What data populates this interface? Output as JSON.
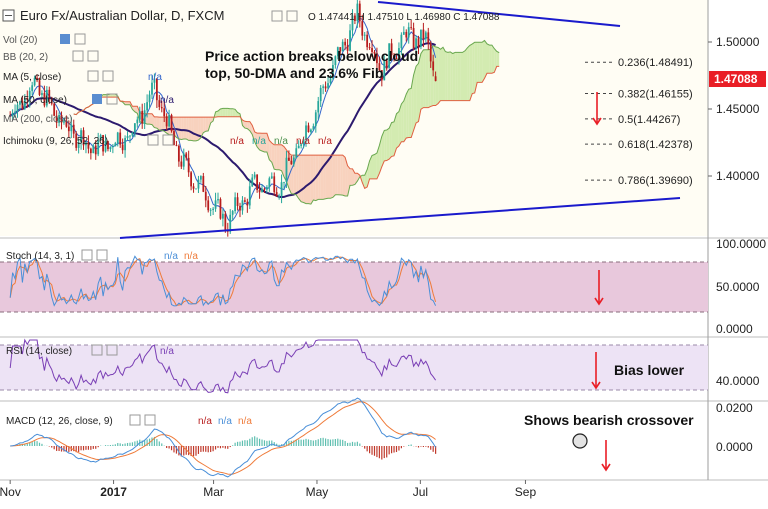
{
  "header": {
    "title": "Euro Fx/Australian Dollar, D, FXCM",
    "ohlc": "O 1.47441  H 1.47510  L 1.46980  C 1.47088"
  },
  "indicators": {
    "vol": "Vol (20)",
    "bb": "BB (20, 2)",
    "ma5": "MA (5, close)",
    "ma50": "MA (50, close)",
    "ma200": "MA (200, close)",
    "ichimoku": "Ichimoku (9, 26, 52, 26)",
    "na": "n/a"
  },
  "annotations": {
    "main_line1": "Price action breaks below cloud",
    "main_line2": "top, 50-DMA and 23.6% Fib",
    "rsi": "Bias lower",
    "macd": "Shows bearish crossover"
  },
  "fib_levels": [
    {
      "label": "0.236(1.48491)",
      "value": 1.48491
    },
    {
      "label": "0.382(1.46155)",
      "value": 1.46155
    },
    {
      "label": "0.5(1.44267)",
      "value": 1.44267
    },
    {
      "label": "0.618(1.42378)",
      "value": 1.42378
    },
    {
      "label": "0.786(1.39690)",
      "value": 1.3969
    }
  ],
  "price_tag": {
    "label": "1.47088",
    "value": 1.47088,
    "color": "#e91e26"
  },
  "colors": {
    "up": "#26a69a",
    "down": "#b71c1c",
    "ma50": "#2c1a6e",
    "ma5": "#3366cc",
    "trend": "#1a1acc",
    "cloud_bull": "#c8e6a0",
    "cloud_bear": "#f6c7b0",
    "stoch_k": "#4a8fd8",
    "stoch_d": "#ef7b3a",
    "rsi": "#7a3fb5",
    "macd": "#4a8fd8",
    "signal": "#ef7b3a",
    "arrow": "#e91e26"
  },
  "panels": {
    "stoch": {
      "label": "Stoch (14, 3, 1)",
      "na1": "n/a",
      "na2": "n/a",
      "ticks": [
        "100.0000",
        "50.0000",
        "0.0000"
      ]
    },
    "rsi": {
      "label": "RSI (14, close)",
      "na": "n/a",
      "ticks": [
        "40.0000"
      ]
    },
    "macd": {
      "label": "MACD (12, 26, close, 9)",
      "na1": "n/a",
      "na2": "n/a",
      "na3": "n/a",
      "ticks": [
        "0.0200",
        "0.0000"
      ]
    }
  },
  "chart_data": {
    "type": "candlestick",
    "title": "Euro Fx/Australian Dollar, D, FXCM",
    "price_ticks": [
      1.5,
      1.45,
      1.4
    ],
    "price_tick_labels": [
      "1.50000",
      "1.45000",
      "1.40000"
    ],
    "x_labels": [
      "Nov",
      "2017",
      "Mar",
      "May",
      "Jul",
      "Sep"
    ],
    "ohlc_last": {
      "open": 1.47441,
      "high": 1.4751,
      "low": 1.4698,
      "close": 1.47088
    },
    "close_path": [
      [
        "2016-11-01",
        1.445
      ],
      [
        "2016-11-15",
        1.47
      ],
      [
        "2016-12-01",
        1.44
      ],
      [
        "2016-12-20",
        1.42
      ],
      [
        "2017-01-10",
        1.43
      ],
      [
        "2017-01-25",
        1.465
      ],
      [
        "2017-02-10",
        1.41
      ],
      [
        "2017-02-25",
        1.385
      ],
      [
        "2017-03-08",
        1.365
      ],
      [
        "2017-03-25",
        1.392
      ],
      [
        "2017-04-10",
        1.395
      ],
      [
        "2017-04-25",
        1.435
      ],
      [
        "2017-05-10",
        1.48
      ],
      [
        "2017-05-25",
        1.52
      ],
      [
        "2017-06-08",
        1.48
      ],
      [
        "2017-06-22",
        1.505
      ],
      [
        "2017-07-05",
        1.5
      ],
      [
        "2017-07-10",
        1.47088
      ]
    ]
  }
}
